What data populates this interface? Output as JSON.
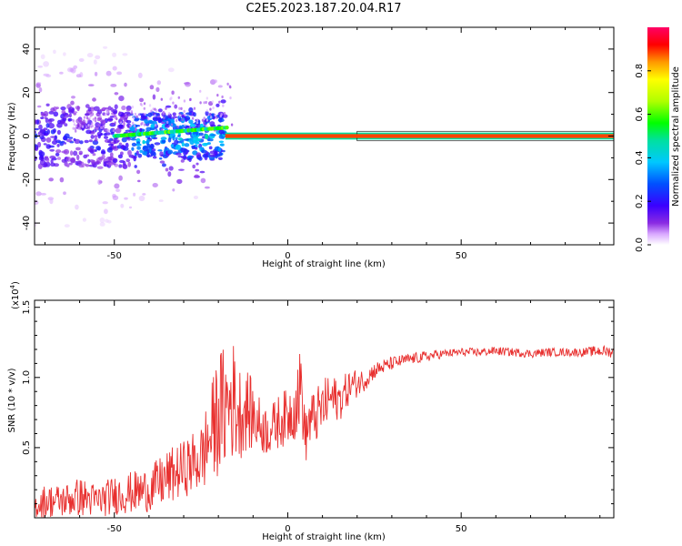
{
  "title": "C2E5.2023.187.20.04.R17",
  "chart_data": [
    {
      "type": "heatmap",
      "name": "spectrogram",
      "xlabel": "Height of straight line (km)",
      "ylabel": "Frequency (Hz)",
      "xlim": [
        -73,
        94
      ],
      "ylim": [
        -50,
        50
      ],
      "x_ticks": [
        -50,
        0,
        50
      ],
      "y_ticks": [
        -40,
        -20,
        0,
        20,
        40
      ],
      "grid": false,
      "colorbar": {
        "label": "Normalized spectral amplitude",
        "ticks": [
          "0.0",
          "0.2",
          "0.4",
          "0.6",
          "0.8"
        ],
        "range": [
          0,
          1
        ],
        "colormap": [
          "#ffffff",
          "#d9a8ff",
          "#8a2be2",
          "#3a00ff",
          "#0050ff",
          "#00c8ff",
          "#00e0a0",
          "#00ff00",
          "#b0ff00",
          "#ffff00",
          "#ff9900",
          "#ff0000",
          "#ff0066"
        ]
      },
      "ridge": {
        "freq_hz": 0,
        "segments": [
          {
            "x_start": -73,
            "x_end": -45,
            "amplitude": 0.3,
            "spread_hz": 4
          },
          {
            "x_start": -45,
            "x_end": -18,
            "amplitude": 0.45,
            "spread_hz": 3
          },
          {
            "x_start": -18,
            "x_end": 20,
            "amplitude": 0.75,
            "spread_hz": 1.5
          },
          {
            "x_start": 20,
            "x_end": 94,
            "amplitude": 0.85,
            "spread_hz": 1
          }
        ]
      }
    },
    {
      "type": "line",
      "name": "snr",
      "xlabel": "Height of straight line (km)",
      "ylabel": "SNR (10 * v/v)",
      "y_multiplier": "(x10",
      "y_multiplier_exp": "4",
      "y_multiplier_close": ")",
      "xlim": [
        -73,
        94
      ],
      "ylim": [
        0,
        1.55
      ],
      "x_ticks": [
        -50,
        0,
        50
      ],
      "y_ticks": [
        "0.5",
        "1.0",
        "1.5"
      ],
      "y_tick_values": [
        0.5,
        1.0,
        1.5
      ],
      "grid": false,
      "line_color": "#e8302f",
      "series": [
        {
          "x": [
            -73,
            -70,
            -65,
            -60,
            -55,
            -50,
            -45,
            -40,
            -35,
            -30,
            -25,
            -22,
            -20,
            -18,
            -16,
            -14,
            -12,
            -10,
            -8,
            -6,
            -4,
            -2,
            0,
            2,
            4,
            5,
            6,
            8,
            10,
            12,
            15,
            18,
            20,
            22,
            25,
            28,
            30,
            35,
            40,
            45,
            50,
            55,
            60,
            65,
            70,
            75,
            80,
            85,
            90,
            94
          ],
          "y": [
            0.08,
            0.12,
            0.12,
            0.15,
            0.12,
            0.16,
            0.18,
            0.2,
            0.28,
            0.35,
            0.42,
            0.6,
            0.75,
            0.78,
            0.85,
            0.75,
            0.78,
            0.72,
            0.66,
            0.62,
            0.65,
            0.7,
            0.72,
            0.8,
            0.95,
            0.55,
            0.68,
            0.72,
            0.78,
            0.85,
            0.84,
            0.94,
            0.96,
            0.98,
            1.05,
            1.08,
            1.1,
            1.13,
            1.15,
            1.17,
            1.18,
            1.18,
            1.19,
            1.18,
            1.17,
            1.18,
            1.18,
            1.18,
            1.19,
            1.18
          ],
          "noise_amplitude": [
            0.08,
            0.12,
            0.12,
            0.14,
            0.12,
            0.14,
            0.15,
            0.16,
            0.2,
            0.2,
            0.25,
            0.35,
            0.45,
            0.45,
            0.45,
            0.35,
            0.3,
            0.25,
            0.2,
            0.18,
            0.18,
            0.2,
            0.2,
            0.25,
            0.3,
            0.2,
            0.2,
            0.2,
            0.2,
            0.18,
            0.15,
            0.12,
            0.1,
            0.08,
            0.06,
            0.05,
            0.05,
            0.04,
            0.04,
            0.03,
            0.03,
            0.03,
            0.03,
            0.03,
            0.03,
            0.03,
            0.03,
            0.03,
            0.04,
            0.04
          ]
        }
      ]
    }
  ]
}
